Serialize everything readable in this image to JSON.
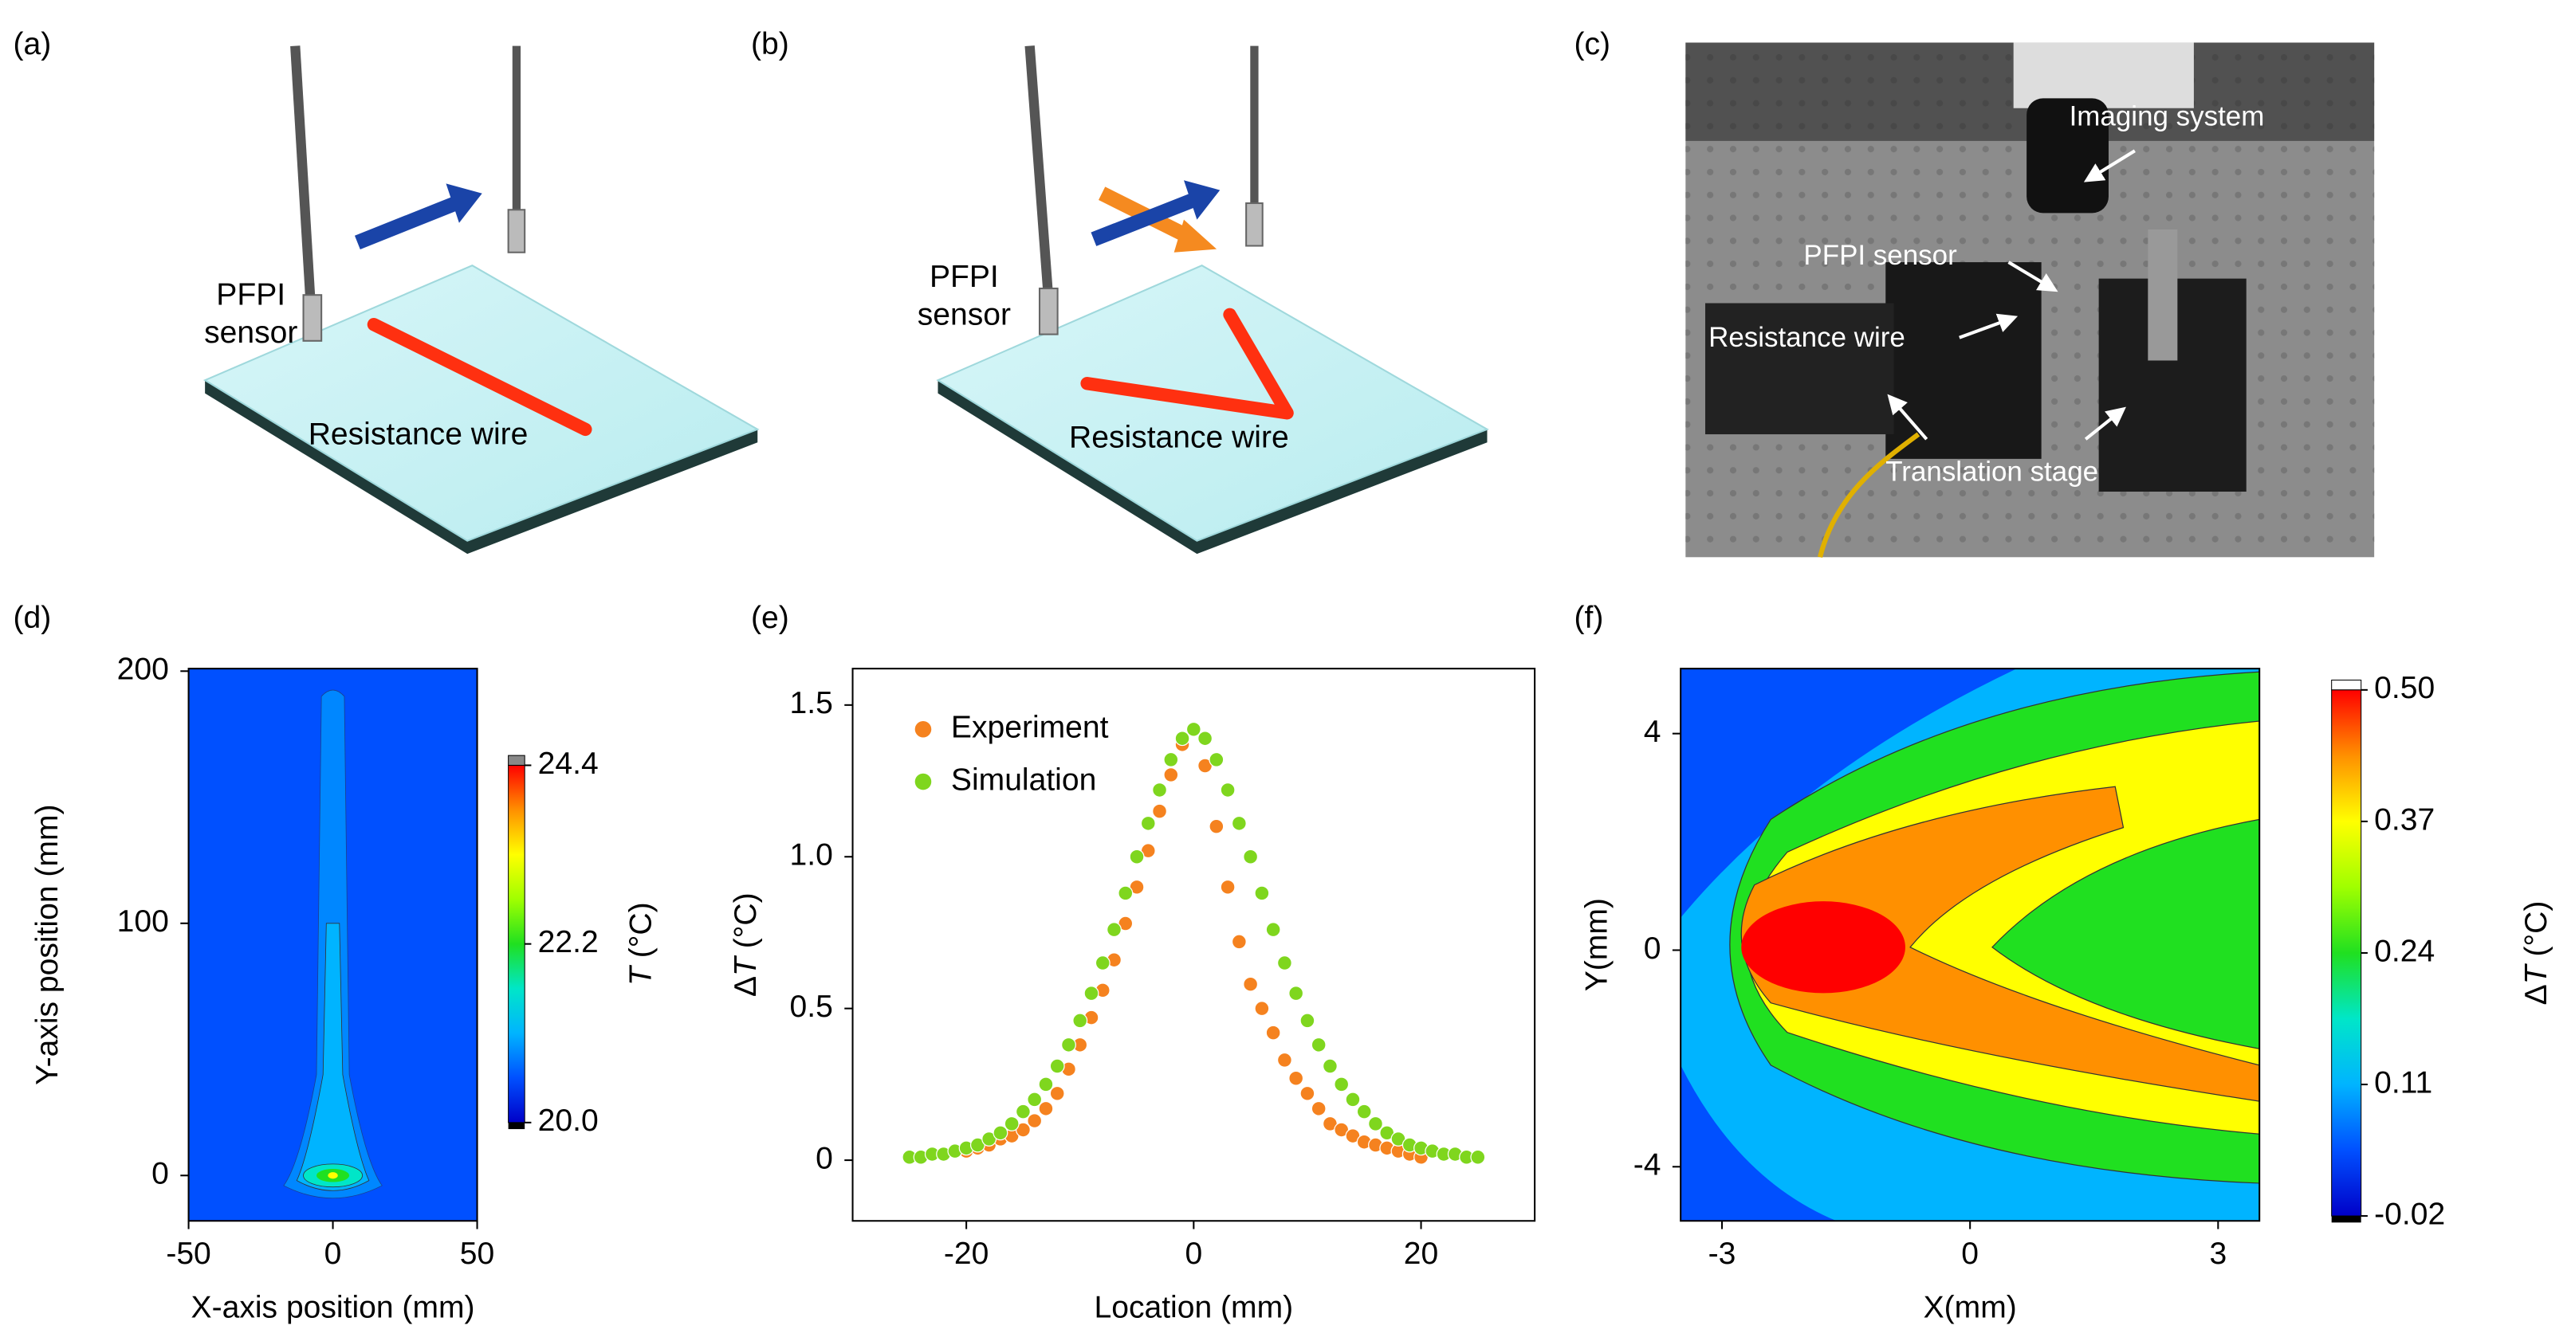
{
  "figure": {
    "panel_a": {
      "label": "(a)",
      "sensor_label": [
        "PFPI",
        "sensor"
      ],
      "wire_label": "Resistance wire"
    },
    "panel_b": {
      "label": "(b)",
      "sensor_label": [
        "PFPI",
        "sensor"
      ],
      "wire_label": "Resistance wire"
    },
    "panel_c": {
      "label": "(c)",
      "annotations": [
        "Imaging system",
        "PFPI sensor",
        "Resistance wire",
        "Translation stage"
      ]
    }
  },
  "chart_data": [
    {
      "type": "contour",
      "panel_label": "(d)",
      "xlabel": "X-axis position (mm)",
      "ylabel": "Y-axis position (mm)",
      "xlim": [
        -50,
        50
      ],
      "ylim": [
        -18,
        201
      ],
      "xticks": [
        -50,
        0,
        50
      ],
      "yticks": [
        0,
        100,
        200
      ],
      "colorbar": {
        "label": {
          "symbol": "T",
          "unit": "(°C)"
        },
        "clim": [
          20,
          24.4
        ],
        "ticks": [
          {
            "value": 20,
            "label": "20.0"
          },
          22.2,
          24.4
        ]
      },
      "colormap": [
        "#0000c8",
        "#0050ff",
        "#00b4ff",
        "#00e6c8",
        "#20e020",
        "#a0ff00",
        "#ffff00",
        "#ff9000",
        "#ff0000"
      ]
    },
    {
      "type": "scatter",
      "panel_label": "(e)",
      "xlabel": "Location (mm)",
      "ylabel": {
        "prefix": "Δ",
        "symbol": "T",
        "unit": "(°C)"
      },
      "xlim": [
        -30,
        30
      ],
      "ylim": [
        -0.2,
        1.62
      ],
      "xticks": [
        -20,
        0,
        20
      ],
      "yticks": [
        0,
        0.5,
        {
          "value": 1,
          "label": "1.0"
        },
        1.5
      ],
      "legend": "upper left",
      "series": [
        {
          "name": "Experiment",
          "color": "#f5821f",
          "x": [
            -20,
            -19,
            -18,
            -17,
            -16,
            -15,
            -14,
            -13,
            -12,
            -11,
            -10,
            -9,
            -8,
            -7,
            -6,
            -5,
            -4,
            -3,
            -2,
            -1,
            0,
            1,
            2,
            3,
            4,
            5,
            6,
            7,
            8,
            9,
            10,
            11,
            12,
            13,
            14,
            15,
            16,
            17,
            18,
            19,
            20
          ],
          "values": [
            0.03,
            0.04,
            0.05,
            0.07,
            0.08,
            0.1,
            0.13,
            0.17,
            0.22,
            0.3,
            0.38,
            0.47,
            0.56,
            0.66,
            0.78,
            0.9,
            1.02,
            1.15,
            1.27,
            1.37,
            1.42,
            1.3,
            1.1,
            0.9,
            0.72,
            0.58,
            0.5,
            0.42,
            0.33,
            0.27,
            0.22,
            0.17,
            0.12,
            0.1,
            0.08,
            0.06,
            0.05,
            0.04,
            0.03,
            0.02,
            0.01
          ]
        },
        {
          "name": "Simulation",
          "color": "#7fd61e",
          "x": [
            -25,
            -24,
            -23,
            -22,
            -21,
            -20,
            -19,
            -18,
            -17,
            -16,
            -15,
            -14,
            -13,
            -12,
            -11,
            -10,
            -9,
            -8,
            -7,
            -6,
            -5,
            -4,
            -3,
            -2,
            -1,
            0,
            1,
            2,
            3,
            4,
            5,
            6,
            7,
            8,
            9,
            10,
            11,
            12,
            13,
            14,
            15,
            16,
            17,
            18,
            19,
            20,
            21,
            22,
            23,
            24,
            25
          ],
          "values": [
            0.01,
            0.01,
            0.02,
            0.02,
            0.03,
            0.04,
            0.05,
            0.07,
            0.09,
            0.12,
            0.16,
            0.2,
            0.25,
            0.31,
            0.38,
            0.46,
            0.55,
            0.65,
            0.76,
            0.88,
            1.0,
            1.11,
            1.22,
            1.32,
            1.39,
            1.42,
            1.39,
            1.32,
            1.22,
            1.11,
            1.0,
            0.88,
            0.76,
            0.65,
            0.55,
            0.46,
            0.38,
            0.31,
            0.25,
            0.2,
            0.16,
            0.12,
            0.09,
            0.07,
            0.05,
            0.04,
            0.03,
            0.02,
            0.02,
            0.01,
            0.01
          ]
        }
      ]
    },
    {
      "type": "contour",
      "panel_label": "(f)",
      "xlabel": "X(mm)",
      "ylabel": "Y(mm)",
      "xlim": [
        -3.5,
        3.5
      ],
      "ylim": [
        -5,
        5.2
      ],
      "xticks": [
        -3,
        0,
        3
      ],
      "yticks": [
        -4,
        0,
        4
      ],
      "colorbar": {
        "label": {
          "prefix": "Δ",
          "symbol": "T",
          "unit": "(°C)"
        },
        "clim": [
          -0.02,
          0.5
        ],
        "ticks": [
          -0.02,
          0.11,
          0.24,
          0.37,
          {
            "value": 0.5,
            "label": "0.50"
          }
        ]
      },
      "colormap": [
        "#0000c8",
        "#0050ff",
        "#00b4ff",
        "#00e6c8",
        "#20e020",
        "#a0ff00",
        "#ffff00",
        "#ff9000",
        "#ff0000"
      ]
    }
  ]
}
